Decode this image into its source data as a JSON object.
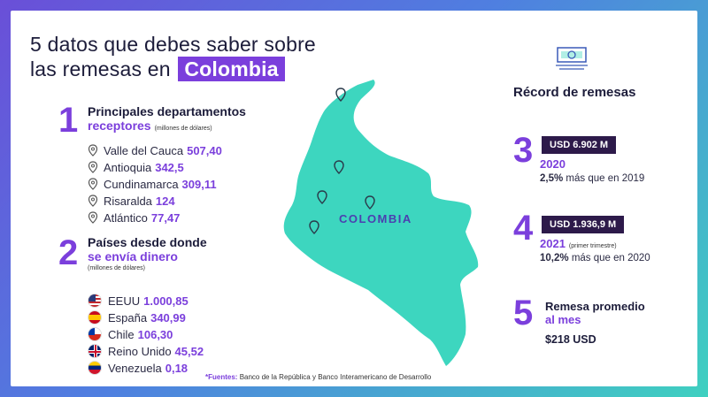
{
  "title": {
    "line1": "5 datos que debes saber sobre",
    "line2_prefix": "las remesas en",
    "highlight": "Colombia"
  },
  "section1": {
    "number": "1",
    "title_line1": "Principales departamentos",
    "title_line2": "receptores",
    "unit_note": "(millones de dólares)",
    "items": [
      {
        "name": "Valle del Cauca",
        "value": "507,40"
      },
      {
        "name": "Antioquia",
        "value": "342,5"
      },
      {
        "name": "Cundinamarca",
        "value": "309,11"
      },
      {
        "name": "Risaralda",
        "value": "124"
      },
      {
        "name": "Atlántico",
        "value": "77,47"
      }
    ]
  },
  "section2": {
    "number": "2",
    "title_line1": "Países desde donde",
    "title_line2": "se envía dinero",
    "unit_note": "(millones de dólares)",
    "items": [
      {
        "name": "EEUU",
        "value": "1.000,85",
        "flag": "us-flag-icon"
      },
      {
        "name": "España",
        "value": "340,99",
        "flag": "spain-flag-icon"
      },
      {
        "name": "Chile",
        "value": "106,30",
        "flag": "chile-flag-icon"
      },
      {
        "name": "Reino Unido",
        "value": "45,52",
        "flag": "uk-flag-icon"
      },
      {
        "name": "Venezuela",
        "value": "0,18",
        "flag": "venezuela-flag-icon"
      }
    ]
  },
  "map": {
    "label": "COLOMBIA",
    "color": "#3dd6bf"
  },
  "record": {
    "title": "Récord de remesas",
    "items": [
      {
        "number": "3",
        "pill": "USD 6.902 M",
        "year": "2020",
        "note": "",
        "pct": "2,5%",
        "text": "más que en 2019"
      },
      {
        "number": "4",
        "pill": "USD 1.936,9 M",
        "year": "2021",
        "note": "(primer trimestre)",
        "pct": "10,2%",
        "text": "más que en 2020"
      }
    ]
  },
  "average": {
    "number": "5",
    "title_line1": "Remesa promedio",
    "title_line2": "al mes",
    "value": "$218 USD"
  },
  "footer": {
    "label": "*Fuentes:",
    "text": "Banco de la República y Banco Interamericano de Desarrollo"
  },
  "colors": {
    "accent": "#7b3fdc",
    "dark": "#1c1c3a",
    "pill": "#2d1a4a",
    "map": "#3dd6bf"
  }
}
